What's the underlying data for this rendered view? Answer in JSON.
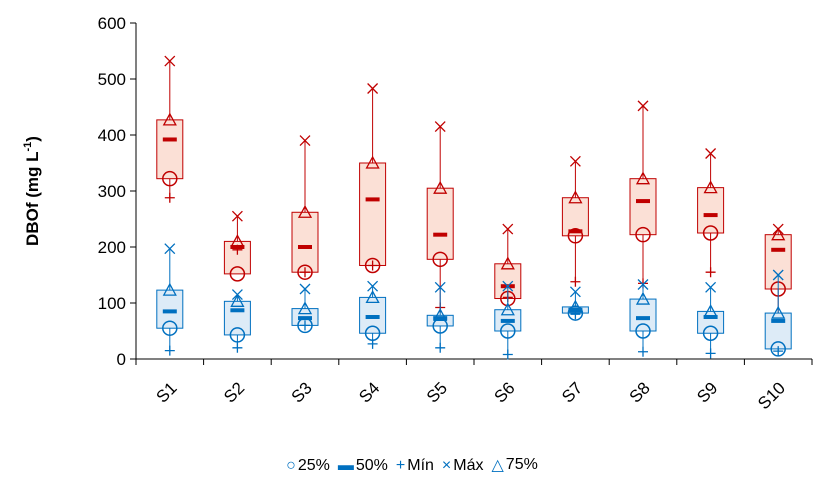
{
  "chart_data": {
    "type": "box",
    "ylabel": "DBOf (mg L",
    "ylabel_sup": "-1",
    "ylabel_close": ")",
    "ylim": [
      0,
      600
    ],
    "yticks": [
      "0",
      "100",
      "200",
      "300",
      "400",
      "500",
      "600"
    ],
    "categories": [
      "S1",
      "S2",
      "S3",
      "S4",
      "S5",
      "S6",
      "S7",
      "S8",
      "S9",
      "S10"
    ],
    "legend": [
      "25%",
      "50%",
      "Mín",
      "Máx",
      "75%"
    ],
    "legend_symbols": [
      "○",
      "▬",
      "+",
      "×",
      "△"
    ],
    "series": [
      {
        "color": "#c00000",
        "fill": "#fbe0d6",
        "q1": [
          322,
          152,
          155,
          167,
          178,
          108,
          220,
          222,
          225,
          125
        ],
        "median": [
          392,
          200,
          200,
          285,
          222,
          130,
          228,
          282,
          257,
          195
        ],
        "q3": [
          427,
          210,
          262,
          350,
          305,
          170,
          288,
          322,
          306,
          222
        ],
        "min": [
          288,
          195,
          155,
          167,
          92,
          110,
          138,
          135,
          155,
          65
        ],
        "max": [
          532,
          255,
          390,
          483,
          415,
          232,
          353,
          452,
          367,
          232
        ]
      },
      {
        "color": "#0070c0",
        "fill": "#ddebf7",
        "q1": [
          55,
          43,
          60,
          46,
          59,
          50,
          82,
          50,
          46,
          18
        ],
        "median": [
          85,
          87,
          73,
          75,
          73,
          68,
          88,
          73,
          75,
          68
        ],
        "q3": [
          123,
          103,
          90,
          110,
          78,
          88,
          93,
          107,
          85,
          82
        ],
        "min": [
          15,
          20,
          60,
          27,
          20,
          8,
          80,
          13,
          10,
          14
        ],
        "max": [
          197,
          115,
          125,
          130,
          128,
          130,
          120,
          133,
          128,
          150
        ]
      }
    ],
    "grid": false
  }
}
